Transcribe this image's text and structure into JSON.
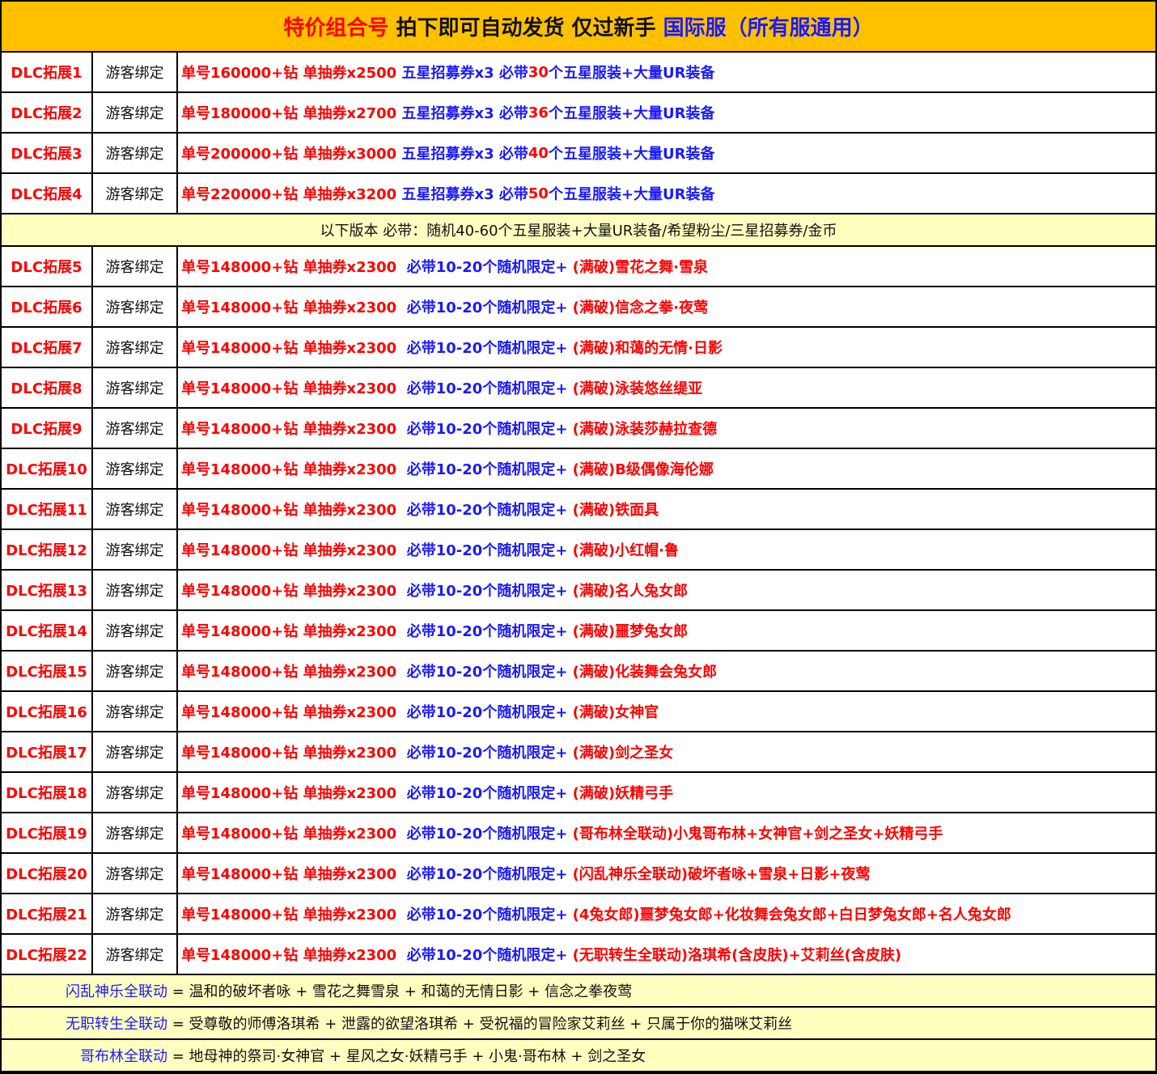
{
  "colors": {
    "header_bg": "#FFC000",
    "note_bg": "#FFFFC0",
    "red": "#FF0000",
    "blue": "#1A1AFF"
  },
  "header": {
    "part1": "特价组合号",
    "part2": " 拍下即可自动发货 仅过新手 ",
    "part3": "国际服（所有服通用）"
  },
  "top_rows": [
    {
      "name": "DLC拓展1",
      "bind": "游客绑定",
      "segments": [
        {
          "c": "r",
          "t": "单号160000+钻 单抽券x2500 "
        },
        {
          "c": "b",
          "t": "五星招募券x3 必带"
        },
        {
          "c": "r",
          "t": "30"
        },
        {
          "c": "b",
          "t": "个五星服装+大量UR装备"
        }
      ]
    },
    {
      "name": "DLC拓展2",
      "bind": "游客绑定",
      "segments": [
        {
          "c": "r",
          "t": "单号180000+钻 单抽券x2700 "
        },
        {
          "c": "b",
          "t": "五星招募券x3 必带"
        },
        {
          "c": "r",
          "t": "36"
        },
        {
          "c": "b",
          "t": "个五星服装+大量UR装备"
        }
      ]
    },
    {
      "name": "DLC拓展3",
      "bind": "游客绑定",
      "segments": [
        {
          "c": "r",
          "t": "单号200000+钻 单抽券x3000 "
        },
        {
          "c": "b",
          "t": "五星招募券x3 必带"
        },
        {
          "c": "r",
          "t": "40"
        },
        {
          "c": "b",
          "t": "个五星服装+大量UR装备"
        }
      ]
    },
    {
      "name": "DLC拓展4",
      "bind": "游客绑定",
      "segments": [
        {
          "c": "r",
          "t": "单号220000+钻 单抽券x3200 "
        },
        {
          "c": "b",
          "t": "五星招募券x3 必带"
        },
        {
          "c": "r",
          "t": "50"
        },
        {
          "c": "b",
          "t": "个五星服装+大量UR装备"
        }
      ]
    }
  ],
  "note": "以下版本 必带：随机40-60个五星服装+大量UR装备/希望粉尘/三星招募券/金币",
  "common": {
    "base": "单号148000+钻 单抽券x2300 ",
    "bonus": " 必带10-20个随机限定+ ",
    "bind": "游客绑定"
  },
  "rows": [
    {
      "name": "DLC拓展5",
      "extra": "(满破)雪花之舞·雪泉"
    },
    {
      "name": "DLC拓展6",
      "extra": "(满破)信念之拳·夜莺"
    },
    {
      "name": "DLC拓展7",
      "extra": "(满破)和蔼的无情·日影"
    },
    {
      "name": "DLC拓展8",
      "extra": "(满破)泳装悠丝缇亚"
    },
    {
      "name": "DLC拓展9",
      "extra": "(满破)泳装莎赫拉查德"
    },
    {
      "name": "DLC拓展10",
      "extra": "(满破)B级偶像海伦娜"
    },
    {
      "name": "DLC拓展11",
      "extra": "(满破)铁面具"
    },
    {
      "name": "DLC拓展12",
      "extra": "(满破)小红帽·鲁"
    },
    {
      "name": "DLC拓展13",
      "extra": "(满破)名人兔女郎"
    },
    {
      "name": "DLC拓展14",
      "extra": "(满破)噩梦兔女郎"
    },
    {
      "name": "DLC拓展15",
      "extra": "(满破)化装舞会兔女郎"
    },
    {
      "name": "DLC拓展16",
      "extra": "(满破)女神官"
    },
    {
      "name": "DLC拓展17",
      "extra": "(满破)剑之圣女"
    },
    {
      "name": "DLC拓展18",
      "extra": "(满破)妖精弓手"
    },
    {
      "name": "DLC拓展19",
      "extra": "(哥布林全联动)小鬼哥布林+女神官+剑之圣女+妖精弓手"
    },
    {
      "name": "DLC拓展20",
      "extra": "(闪乱神乐全联动)破坏者咏+雪泉+日影+夜莺"
    },
    {
      "name": "DLC拓展21",
      "extra": "(4兔女郎)噩梦兔女郎+化妆舞会兔女郎+白日梦兔女郎+名人兔女郎"
    },
    {
      "name": "DLC拓展22",
      "extra": "(无职转生全联动)洛琪希(含皮肤)+艾莉丝(含皮肤)"
    }
  ],
  "footer": [
    {
      "label": "闪乱神乐全联动",
      "text": " = 温和的破坏者咏 + 雪花之舞雪泉 + 和蔼的无情日影 + 信念之拳夜莺"
    },
    {
      "label": "无职转生全联动",
      "text": " = 受尊敬的师傅洛琪希 + 泄露的欲望洛琪希 + 受祝福的冒险家艾莉丝 + 只属于你的猫咪艾莉丝"
    },
    {
      "label": "哥布林全联动",
      "text": " = 地母神的祭司·女神官 + 星风之女·妖精弓手 + 小鬼·哥布林 + 剑之圣女"
    }
  ]
}
